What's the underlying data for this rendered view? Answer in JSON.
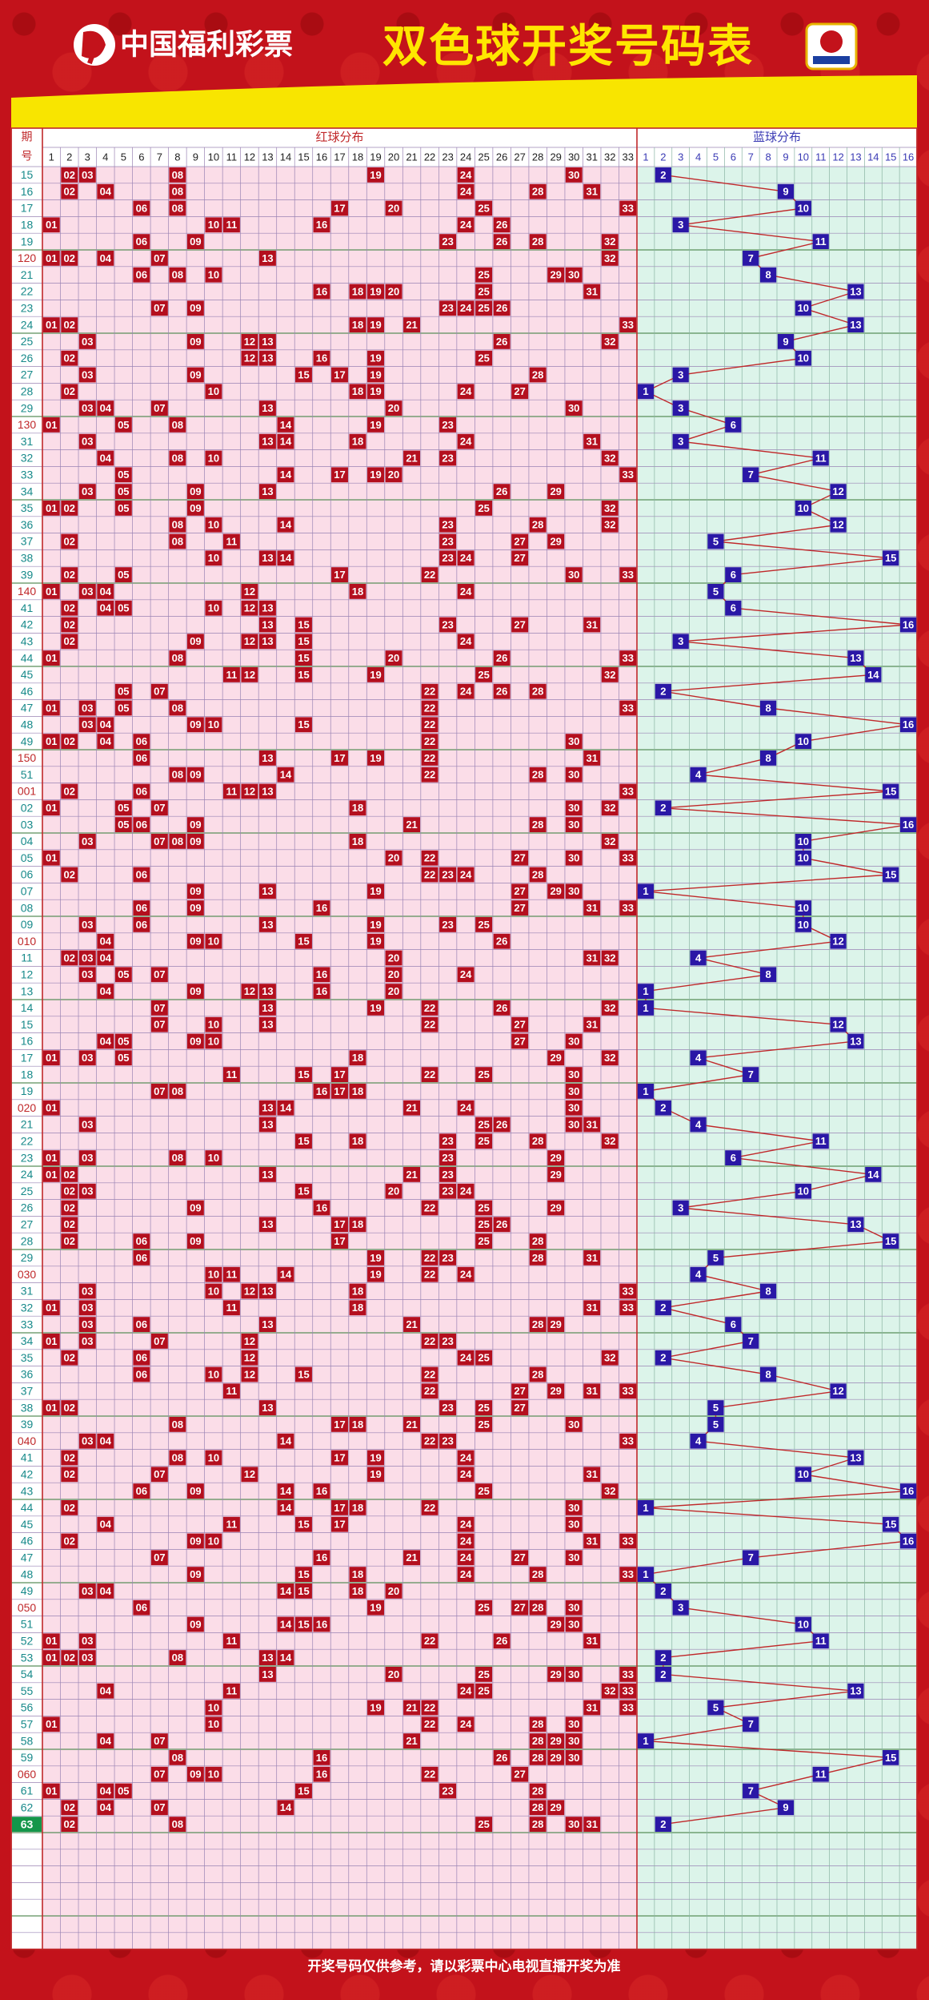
{
  "header": {
    "logo_text": "中国福利彩票",
    "title": "双色球开奖号码表"
  },
  "table": {
    "issue_header": [
      "期",
      "号"
    ],
    "red_header": "红球分布",
    "blue_header": "蓝球分布",
    "red_columns": [
      1,
      2,
      3,
      4,
      5,
      6,
      7,
      8,
      9,
      10,
      11,
      12,
      13,
      14,
      15,
      16,
      17,
      18,
      19,
      20,
      21,
      22,
      23,
      24,
      25,
      26,
      27,
      28,
      29,
      30,
      31,
      32,
      33
    ],
    "blue_columns": [
      1,
      2,
      3,
      4,
      5,
      6,
      7,
      8,
      9,
      10,
      11,
      12,
      13,
      14,
      15,
      16
    ],
    "rows": [
      {
        "issue": "15",
        "red": [
          "02",
          "03",
          "08",
          "19",
          "24",
          "30"
        ],
        "blue": 2
      },
      {
        "issue": "16",
        "red": [
          "02",
          "04",
          "08",
          "24",
          "28",
          "31"
        ],
        "blue": 9
      },
      {
        "issue": "17",
        "red": [
          "06",
          "08",
          "17",
          "20",
          "25",
          "33"
        ],
        "blue": 10
      },
      {
        "issue": "18",
        "red": [
          "01",
          "10",
          "11",
          "16",
          "24",
          "26"
        ],
        "blue": 3
      },
      {
        "issue": "19",
        "red": [
          "06",
          "09",
          "23",
          "26",
          "28",
          "32"
        ],
        "blue": 11
      },
      {
        "issue": "120",
        "red": [
          "01",
          "02",
          "04",
          "07",
          "13",
          "32"
        ],
        "blue": 7
      },
      {
        "issue": "21",
        "red": [
          "06",
          "08",
          "10",
          "25",
          "29",
          "30"
        ],
        "blue": 8
      },
      {
        "issue": "22",
        "red": [
          "16",
          "18",
          "19",
          "20",
          "25",
          "31"
        ],
        "blue": 13
      },
      {
        "issue": "23",
        "red": [
          "07",
          "09",
          "23",
          "24",
          "25",
          "26"
        ],
        "blue": 10
      },
      {
        "issue": "24",
        "red": [
          "01",
          "02",
          "18",
          "19",
          "21",
          "33"
        ],
        "blue": 13
      },
      {
        "issue": "25",
        "red": [
          "03",
          "09",
          "12",
          "13",
          "26",
          "32"
        ],
        "blue": 9
      },
      {
        "issue": "26",
        "red": [
          "02",
          "12",
          "13",
          "16",
          "19",
          "25"
        ],
        "blue": 10
      },
      {
        "issue": "27",
        "red": [
          "03",
          "09",
          "15",
          "17",
          "19",
          "28"
        ],
        "blue": 3
      },
      {
        "issue": "28",
        "red": [
          "02",
          "10",
          "18",
          "19",
          "24",
          "27"
        ],
        "blue": 1
      },
      {
        "issue": "29",
        "red": [
          "03",
          "04",
          "07",
          "13",
          "20",
          "30"
        ],
        "blue": 3
      },
      {
        "issue": "130",
        "red": [
          "01",
          "05",
          "08",
          "14",
          "19",
          "23"
        ],
        "blue": 6
      },
      {
        "issue": "31",
        "red": [
          "03",
          "13",
          "14",
          "18",
          "24",
          "31"
        ],
        "blue": 3
      },
      {
        "issue": "32",
        "red": [
          "04",
          "08",
          "10",
          "21",
          "23",
          "32"
        ],
        "blue": 11
      },
      {
        "issue": "33",
        "red": [
          "05",
          "14",
          "17",
          "19",
          "20",
          "33"
        ],
        "blue": 7
      },
      {
        "issue": "34",
        "red": [
          "03",
          "05",
          "09",
          "13",
          "26",
          "29"
        ],
        "blue": 12
      },
      {
        "issue": "35",
        "red": [
          "01",
          "02",
          "05",
          "09",
          "25",
          "32"
        ],
        "blue": 10
      },
      {
        "issue": "36",
        "red": [
          "08",
          "10",
          "14",
          "23",
          "28",
          "32"
        ],
        "blue": 12
      },
      {
        "issue": "37",
        "red": [
          "02",
          "08",
          "11",
          "23",
          "27",
          "29"
        ],
        "blue": 5
      },
      {
        "issue": "38",
        "red": [
          "10",
          "13",
          "14",
          "23",
          "24",
          "27"
        ],
        "blue": 15
      },
      {
        "issue": "39",
        "red": [
          "02",
          "05",
          "17",
          "22",
          "30",
          "33"
        ],
        "blue": 6
      },
      {
        "issue": "140",
        "red": [
          "01",
          "03",
          "04",
          "12",
          "18",
          "24"
        ],
        "blue": 5
      },
      {
        "issue": "41",
        "red": [
          "02",
          "04",
          "05",
          "10",
          "12",
          "13"
        ],
        "blue": 6
      },
      {
        "issue": "42",
        "red": [
          "02",
          "13",
          "15",
          "23",
          "27",
          "31"
        ],
        "blue": 16
      },
      {
        "issue": "43",
        "red": [
          "02",
          "09",
          "12",
          "13",
          "15",
          "24"
        ],
        "blue": 3
      },
      {
        "issue": "44",
        "red": [
          "01",
          "08",
          "15",
          "20",
          "26",
          "33"
        ],
        "blue": 13
      },
      {
        "issue": "45",
        "red": [
          "11",
          "12",
          "15",
          "19",
          "25",
          "32"
        ],
        "blue": 14
      },
      {
        "issue": "46",
        "red": [
          "05",
          "07",
          "22",
          "24",
          "26",
          "28"
        ],
        "blue": 2
      },
      {
        "issue": "47",
        "red": [
          "01",
          "03",
          "05",
          "08",
          "22",
          "33"
        ],
        "blue": 8
      },
      {
        "issue": "48",
        "red": [
          "03",
          "04",
          "09",
          "10",
          "15",
          "22"
        ],
        "blue": 16
      },
      {
        "issue": "49",
        "red": [
          "01",
          "02",
          "04",
          "06",
          "22",
          "30"
        ],
        "blue": 10
      },
      {
        "issue": "150",
        "red": [
          "06",
          "13",
          "17",
          "19",
          "22",
          "31"
        ],
        "blue": 8
      },
      {
        "issue": "51",
        "red": [
          "08",
          "09",
          "14",
          "22",
          "28",
          "30"
        ],
        "blue": 4
      },
      {
        "issue": "001",
        "red": [
          "02",
          "06",
          "11",
          "12",
          "13",
          "33"
        ],
        "blue": 15
      },
      {
        "issue": "02",
        "red": [
          "01",
          "05",
          "07",
          "18",
          "30",
          "32"
        ],
        "blue": 2
      },
      {
        "issue": "03",
        "red": [
          "05",
          "06",
          "09",
          "21",
          "28",
          "30"
        ],
        "blue": 16
      },
      {
        "issue": "04",
        "red": [
          "03",
          "07",
          "08",
          "09",
          "18",
          "32"
        ],
        "blue": 10
      },
      {
        "issue": "05",
        "red": [
          "01",
          "20",
          "22",
          "27",
          "30",
          "33"
        ],
        "blue": 10
      },
      {
        "issue": "06",
        "red": [
          "02",
          "06",
          "22",
          "23",
          "24",
          "28"
        ],
        "blue": 15
      },
      {
        "issue": "07",
        "red": [
          "09",
          "13",
          "19",
          "27",
          "29",
          "30"
        ],
        "blue": 1
      },
      {
        "issue": "08",
        "red": [
          "06",
          "09",
          "16",
          "27",
          "31",
          "33"
        ],
        "blue": 10
      },
      {
        "issue": "09",
        "red": [
          "03",
          "06",
          "13",
          "19",
          "23",
          "25"
        ],
        "blue": 10
      },
      {
        "issue": "010",
        "red": [
          "04",
          "09",
          "10",
          "15",
          "19",
          "26"
        ],
        "blue": 12
      },
      {
        "issue": "11",
        "red": [
          "02",
          "03",
          "04",
          "20",
          "31",
          "32"
        ],
        "blue": 4
      },
      {
        "issue": "12",
        "red": [
          "03",
          "05",
          "07",
          "16",
          "20",
          "24"
        ],
        "blue": 8
      },
      {
        "issue": "13",
        "red": [
          "04",
          "09",
          "12",
          "13",
          "16",
          "20"
        ],
        "blue": 1
      },
      {
        "issue": "14",
        "red": [
          "07",
          "13",
          "19",
          "22",
          "26",
          "32"
        ],
        "blue": 1
      },
      {
        "issue": "15",
        "red": [
          "07",
          "10",
          "13",
          "22",
          "27",
          "31"
        ],
        "blue": 12
      },
      {
        "issue": "16",
        "red": [
          "04",
          "05",
          "09",
          "10",
          "27",
          "30"
        ],
        "blue": 13
      },
      {
        "issue": "17",
        "red": [
          "01",
          "03",
          "05",
          "18",
          "29",
          "32"
        ],
        "blue": 4
      },
      {
        "issue": "18",
        "red": [
          "11",
          "15",
          "17",
          "22",
          "25",
          "30"
        ],
        "blue": 7
      },
      {
        "issue": "19",
        "red": [
          "07",
          "08",
          "16",
          "17",
          "18",
          "30"
        ],
        "blue": 1
      },
      {
        "issue": "020",
        "red": [
          "01",
          "13",
          "14",
          "21",
          "24",
          "30"
        ],
        "blue": 2
      },
      {
        "issue": "21",
        "red": [
          "03",
          "13",
          "25",
          "26",
          "30",
          "31"
        ],
        "blue": 4
      },
      {
        "issue": "22",
        "red": [
          "15",
          "18",
          "23",
          "25",
          "28",
          "32"
        ],
        "blue": 11
      },
      {
        "issue": "23",
        "red": [
          "01",
          "03",
          "08",
          "10",
          "23",
          "29"
        ],
        "blue": 6
      },
      {
        "issue": "24",
        "red": [
          "01",
          "02",
          "13",
          "21",
          "23",
          "29"
        ],
        "blue": 14
      },
      {
        "issue": "25",
        "red": [
          "02",
          "03",
          "15",
          "20",
          "23",
          "24"
        ],
        "blue": 10
      },
      {
        "issue": "26",
        "red": [
          "02",
          "09",
          "16",
          "22",
          "25",
          "29"
        ],
        "blue": 3
      },
      {
        "issue": "27",
        "red": [
          "02",
          "13",
          "17",
          "18",
          "25",
          "26"
        ],
        "blue": 13
      },
      {
        "issue": "28",
        "red": [
          "02",
          "06",
          "09",
          "17",
          "25",
          "28"
        ],
        "blue": 15
      },
      {
        "issue": "29",
        "red": [
          "06",
          "19",
          "22",
          "23",
          "28",
          "31"
        ],
        "blue": 5
      },
      {
        "issue": "030",
        "red": [
          "10",
          "11",
          "14",
          "19",
          "22",
          "24"
        ],
        "blue": 4
      },
      {
        "issue": "31",
        "red": [
          "03",
          "10",
          "12",
          "13",
          "18",
          "33"
        ],
        "blue": 8
      },
      {
        "issue": "32",
        "red": [
          "01",
          "03",
          "11",
          "18",
          "31",
          "33"
        ],
        "blue": 2
      },
      {
        "issue": "33",
        "red": [
          "03",
          "06",
          "13",
          "21",
          "28",
          "29"
        ],
        "blue": 6
      },
      {
        "issue": "34",
        "red": [
          "01",
          "03",
          "07",
          "12",
          "22",
          "23"
        ],
        "blue": 7
      },
      {
        "issue": "35",
        "red": [
          "02",
          "06",
          "12",
          "24",
          "25",
          "32"
        ],
        "blue": 2
      },
      {
        "issue": "36",
        "red": [
          "06",
          "10",
          "12",
          "15",
          "22",
          "28"
        ],
        "blue": 8
      },
      {
        "issue": "37",
        "red": [
          "11",
          "22",
          "27",
          "29",
          "31",
          "33"
        ],
        "blue": 12
      },
      {
        "issue": "38",
        "red": [
          "01",
          "02",
          "13",
          "23",
          "25",
          "27"
        ],
        "blue": 5
      },
      {
        "issue": "39",
        "red": [
          "08",
          "17",
          "18",
          "21",
          "25",
          "30"
        ],
        "blue": 5
      },
      {
        "issue": "040",
        "red": [
          "03",
          "04",
          "14",
          "22",
          "23",
          "33"
        ],
        "blue": 4
      },
      {
        "issue": "41",
        "red": [
          "02",
          "08",
          "10",
          "17",
          "19",
          "24"
        ],
        "blue": 13
      },
      {
        "issue": "42",
        "red": [
          "02",
          "07",
          "12",
          "19",
          "24",
          "31"
        ],
        "blue": 10
      },
      {
        "issue": "43",
        "red": [
          "06",
          "09",
          "14",
          "16",
          "25",
          "32"
        ],
        "blue": 16
      },
      {
        "issue": "44",
        "red": [
          "02",
          "14",
          "17",
          "18",
          "22",
          "30"
        ],
        "blue": 1
      },
      {
        "issue": "45",
        "red": [
          "04",
          "11",
          "15",
          "17",
          "24",
          "30"
        ],
        "blue": 15
      },
      {
        "issue": "46",
        "red": [
          "02",
          "09",
          "10",
          "24",
          "31",
          "33"
        ],
        "blue": 16
      },
      {
        "issue": "47",
        "red": [
          "07",
          "16",
          "21",
          "24",
          "27",
          "30"
        ],
        "blue": 7
      },
      {
        "issue": "48",
        "red": [
          "09",
          "15",
          "18",
          "24",
          "28",
          "33"
        ],
        "blue": 1
      },
      {
        "issue": "49",
        "red": [
          "03",
          "04",
          "14",
          "15",
          "18",
          "20"
        ],
        "blue": 2
      },
      {
        "issue": "050",
        "red": [
          "06",
          "19",
          "25",
          "27",
          "28",
          "30"
        ],
        "blue": 3
      },
      {
        "issue": "51",
        "red": [
          "09",
          "14",
          "15",
          "16",
          "29",
          "30"
        ],
        "blue": 10
      },
      {
        "issue": "52",
        "red": [
          "01",
          "03",
          "11",
          "22",
          "26",
          "31"
        ],
        "blue": 11
      },
      {
        "issue": "53",
        "red": [
          "01",
          "02",
          "03",
          "08",
          "13",
          "14"
        ],
        "blue": 2
      },
      {
        "issue": "54",
        "red": [
          "13",
          "20",
          "25",
          "29",
          "30",
          "33"
        ],
        "blue": 2
      },
      {
        "issue": "55",
        "red": [
          "04",
          "11",
          "24",
          "25",
          "32",
          "33"
        ],
        "blue": 13
      },
      {
        "issue": "56",
        "red": [
          "10",
          "19",
          "21",
          "22",
          "31",
          "33"
        ],
        "blue": 5
      },
      {
        "issue": "57",
        "red": [
          "01",
          "10",
          "22",
          "24",
          "28",
          "30"
        ],
        "blue": 7
      },
      {
        "issue": "58",
        "red": [
          "04",
          "07",
          "21",
          "28",
          "29",
          "30"
        ],
        "blue": 1
      },
      {
        "issue": "59",
        "red": [
          "08",
          "16",
          "26",
          "28",
          "29",
          "30"
        ],
        "blue": 15
      },
      {
        "issue": "060",
        "red": [
          "07",
          "09",
          "10",
          "16",
          "22",
          "27"
        ],
        "blue": 11
      },
      {
        "issue": "61",
        "red": [
          "01",
          "04",
          "05",
          "15",
          "23",
          "28"
        ],
        "blue": 7
      },
      {
        "issue": "62",
        "red": [
          "02",
          "04",
          "07",
          "14",
          "28",
          "29"
        ],
        "blue": 9
      },
      {
        "issue": "63",
        "red": [
          "02",
          "08",
          "25",
          "28",
          "30",
          "31"
        ],
        "blue": 2
      }
    ]
  },
  "footer": "开奖号码仅供参考，请以彩票中心电视直播开奖为准"
}
